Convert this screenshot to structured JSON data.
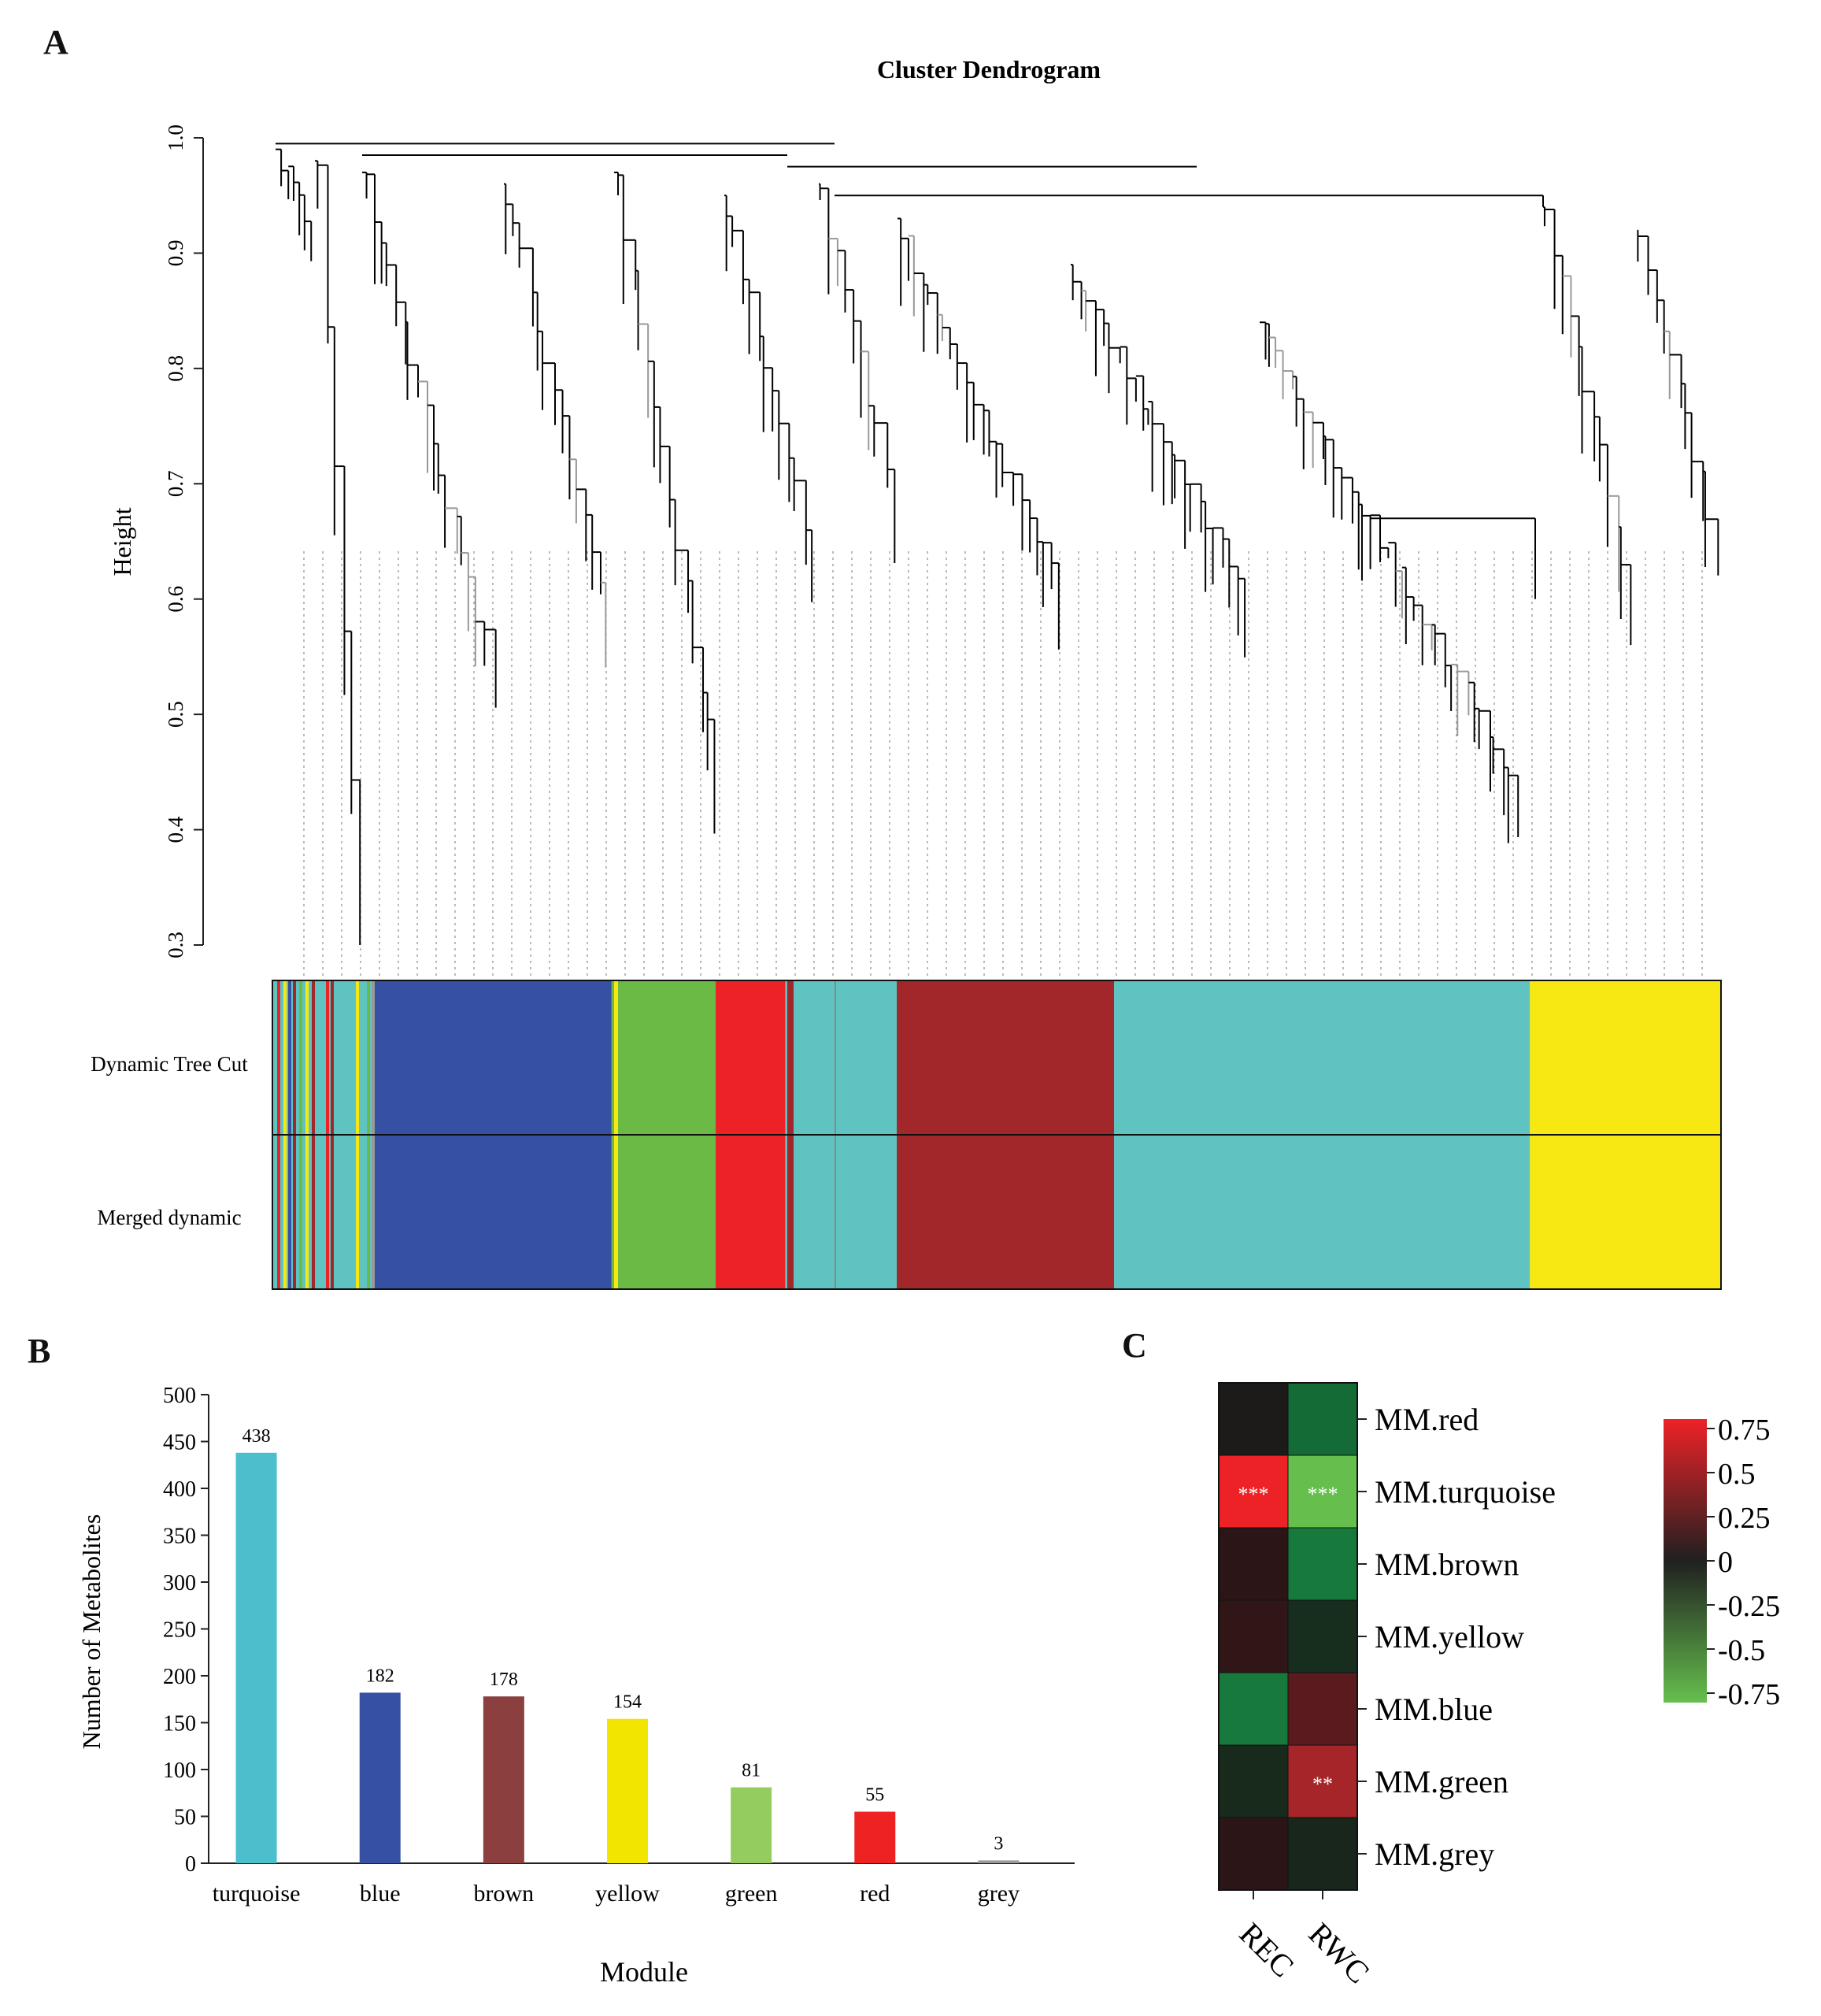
{
  "panels": {
    "a": "A",
    "b": "B",
    "c": "C"
  },
  "dendrogram": {
    "title": "Cluster Dendrogram",
    "ylabel": "Height",
    "yticks": [
      "0.3",
      "0.4",
      "0.5",
      "0.6",
      "0.7",
      "0.8",
      "0.9",
      "1.0"
    ],
    "ylim": [
      0.3,
      1.0
    ],
    "row_labels": [
      "Dynamic Tree Cut",
      "Merged dynamic"
    ],
    "module_strips": [
      {
        "name": "mixed",
        "weight": 6.9,
        "color": "#5fc4c1"
      },
      {
        "name": "blue",
        "weight": 16.5,
        "color": "#3651a3"
      },
      {
        "name": "green",
        "weight": 7.2,
        "color": "#6aba45"
      },
      {
        "name": "red",
        "weight": 4.8,
        "color": "#ec2227"
      },
      {
        "name": "turquoise",
        "weight": 7.7,
        "color": "#5fc4c1"
      },
      {
        "name": "brown",
        "weight": 15.0,
        "color": "#a2272b"
      },
      {
        "name": "turquoise",
        "weight": 28.7,
        "color": "#5fc4c1"
      },
      {
        "name": "yellow",
        "weight": 13.2,
        "color": "#f7e814"
      }
    ]
  },
  "chart_data": [
    {
      "type": "bar",
      "title": "",
      "xlabel": "Module",
      "ylabel": "Number of Metabolites",
      "ylim": [
        0,
        500
      ],
      "yticks": [
        "0",
        "50",
        "100",
        "150",
        "200",
        "250",
        "300",
        "350",
        "400",
        "450",
        "500"
      ],
      "categories": [
        "turquoise",
        "blue",
        "brown",
        "yellow",
        "green",
        "red",
        "grey"
      ],
      "values": [
        438,
        182,
        178,
        154,
        81,
        55,
        3
      ],
      "value_labels": [
        "438",
        "182",
        "178",
        "154",
        "81",
        "55",
        "3"
      ],
      "colors": [
        "#4bbfcc",
        "#3651a3",
        "#8b3f3f",
        "#f2e500",
        "#95cc60",
        "#ee2222",
        "#999999"
      ]
    },
    {
      "type": "heatmap",
      "rows": [
        "MM.red",
        "MM.turquoise",
        "MM.brown",
        "MM.yellow",
        "MM.blue",
        "MM.green",
        "MM.grey"
      ],
      "columns": [
        "REC",
        "RWC"
      ],
      "values": [
        [
          0.02,
          -0.25
        ],
        [
          0.8,
          -0.75
        ],
        [
          0.08,
          -0.3
        ],
        [
          0.1,
          -0.05
        ],
        [
          -0.3,
          0.2
        ],
        [
          -0.05,
          0.35
        ],
        [
          0.08,
          -0.03
        ]
      ],
      "cells": [
        [
          "#1d1a1a",
          "#156b36"
        ],
        [
          "#ed2227",
          "#66bf4d"
        ],
        [
          "#2c1516",
          "#177a3c"
        ],
        [
          "#311617",
          "#172d1d"
        ],
        [
          "#177a3c",
          "#5b1b1e"
        ],
        [
          "#172a1c",
          "#a52528"
        ],
        [
          "#2c1516",
          "#18261b"
        ]
      ],
      "stars": [
        [
          "",
          ""
        ],
        [
          "***",
          "***"
        ],
        [
          "",
          ""
        ],
        [
          "",
          ""
        ],
        [
          "",
          ""
        ],
        [
          "",
          "**"
        ],
        [
          "",
          ""
        ]
      ],
      "legend_ticks": [
        "0.75",
        "0.5",
        "0.25",
        "0",
        "-0.25",
        "-0.5",
        "-0.75"
      ],
      "legend_colors": [
        "#ed2227",
        "#202020",
        "#66bf4d"
      ]
    }
  ]
}
